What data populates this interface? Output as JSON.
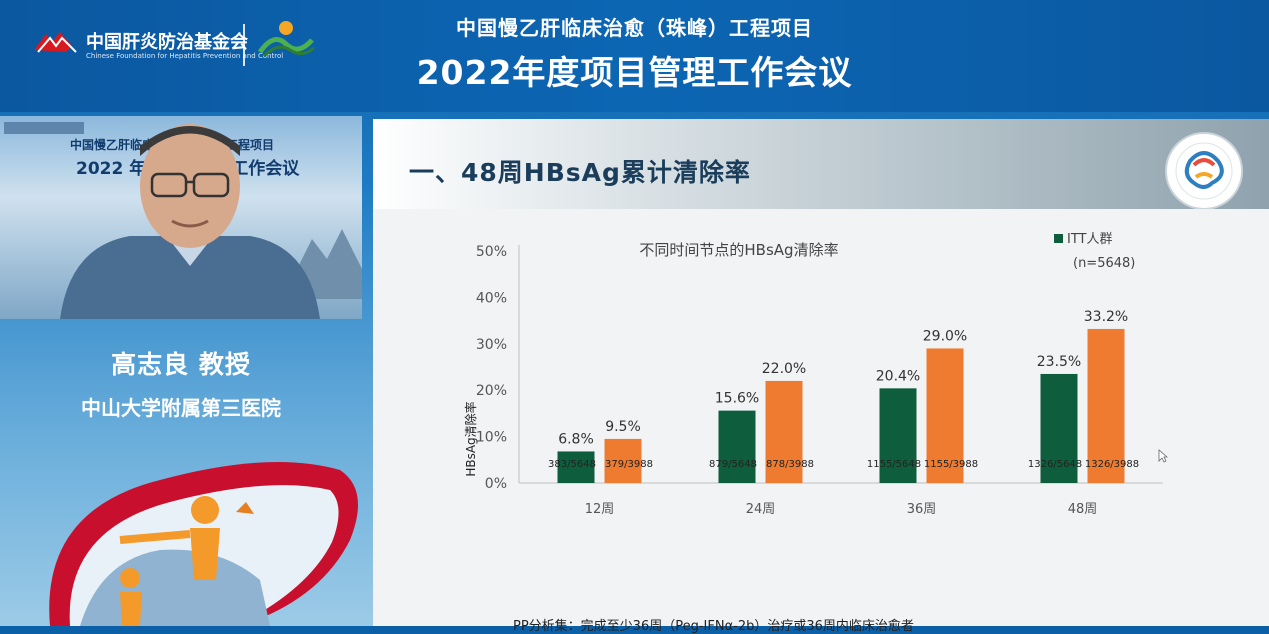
{
  "header": {
    "org_name": "中国肝炎防治基金会",
    "org_subtitle": "Chinese Foundation for Hepatitis Prevention and Control",
    "title_line1": "中国慢乙肝临床治愈（珠峰）工程项目",
    "title_line2": "2022年度项目管理工作会议"
  },
  "video": {
    "bg_title1": "中国慢乙肝临床治愈（珠峰）工程项目",
    "bg_title2": "2022 年度项目管理工作会议"
  },
  "speaker": {
    "name": "高志良 教授",
    "organization": "中山大学附属第三医院"
  },
  "slide": {
    "heading": "一、48周HBsAg累计清除率",
    "footnote": "PP分析集：完成至少36周（Peg-IFNα-2b）治疗或36周内临床治愈者"
  },
  "chart_data": {
    "type": "bar",
    "title": "不同时间节点的HBsAg清除率",
    "ylabel": "HBsAg清除率",
    "xlabel": "",
    "ylim": [
      0,
      50
    ],
    "yticks": [
      "0%",
      "10%",
      "20%",
      "30%",
      "40%",
      "50%"
    ],
    "categories": [
      "12周",
      "24周",
      "36周",
      "48周"
    ],
    "legend": {
      "label": "ITT人群",
      "note": "(n=5648)",
      "placement": "top-right"
    },
    "series": [
      {
        "name": "ITT人群",
        "color": "#0e5e3e",
        "values": [
          6.8,
          15.6,
          20.4,
          23.5
        ],
        "value_labels": [
          "6.8%",
          "15.6%",
          "20.4%",
          "23.5%"
        ],
        "count_labels": [
          "383/5648",
          "879/5648",
          "1155/5648",
          "1326/5648"
        ]
      },
      {
        "color": "#ee7b30",
        "values": [
          9.5,
          22.0,
          29.0,
          33.2
        ],
        "value_labels": [
          "9.5%",
          "22.0%",
          "29.0%",
          "33.2%"
        ],
        "count_labels": [
          "379/3988",
          "878/3988",
          "1155/3988",
          "1326/3988"
        ]
      }
    ]
  },
  "colors": {
    "header_blue": "#0c66b3",
    "itt_green": "#0e5e3e",
    "pp_orange": "#ee7b30",
    "slide_title": "#1a3d5b"
  }
}
